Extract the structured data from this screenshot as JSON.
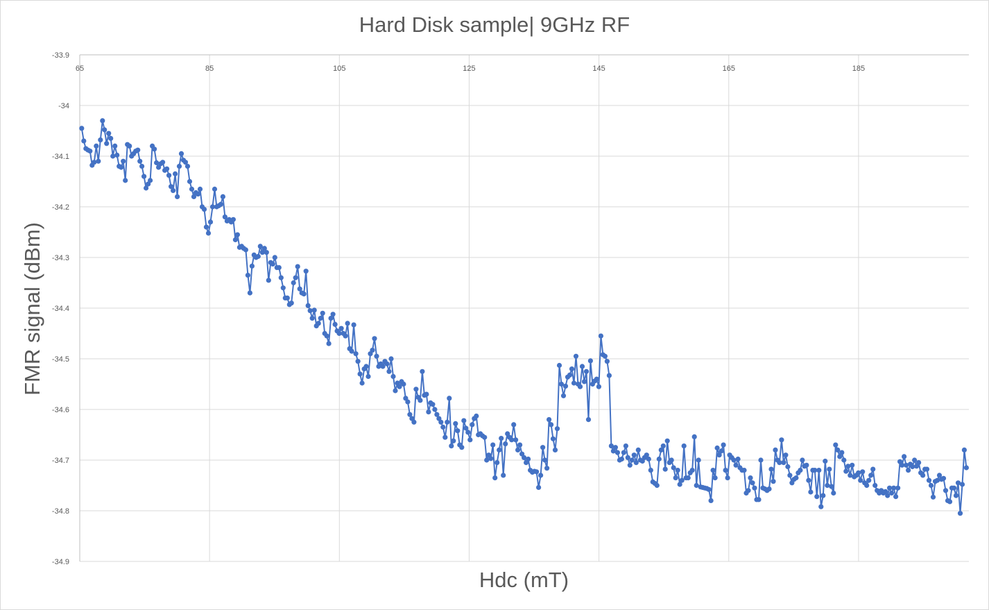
{
  "chart_data": {
    "type": "line",
    "title": "Hard Disk sample| 9GHz RF",
    "xlabel": "Hdc (mT)",
    "ylabel": "FMR signal (dBm)",
    "xlim": [
      65,
      202
    ],
    "ylim": [
      -34.9,
      -33.9
    ],
    "x_ticks": [
      65,
      85,
      105,
      125,
      145,
      165,
      185
    ],
    "x_tick_labels": [
      "65",
      "85",
      "105",
      "125",
      "145",
      "165",
      "185"
    ],
    "y_ticks": [
      -33.9,
      -34,
      -34.1,
      -34.2,
      -34.3,
      -34.4,
      -34.5,
      -34.6,
      -34.7,
      -34.8,
      -34.9
    ],
    "y_tick_labels": [
      "-33.9",
      "-34",
      "-34.1",
      "-34.2",
      "-34.3",
      "-34.4",
      "-34.5",
      "-34.6",
      "-34.7",
      "-34.8",
      "-34.9"
    ],
    "x_axis_position": "top",
    "grid": true,
    "marker": "circle",
    "line_color": "#4472c4",
    "x_start": 65.3,
    "x_step": 0.32,
    "series": [
      {
        "values": [
          -34.045,
          -34.07,
          -34.085,
          -34.088,
          -34.09,
          -34.118,
          -34.112,
          -34.08,
          -34.11,
          -34.068,
          -34.03,
          -34.048,
          -34.075,
          -34.055,
          -34.065,
          -34.1,
          -34.08,
          -34.098,
          -34.12,
          -34.122,
          -34.11,
          -34.148,
          -34.077,
          -34.08,
          -34.1,
          -34.095,
          -34.09,
          -34.088,
          -34.11,
          -34.12,
          -34.14,
          -34.163,
          -34.155,
          -34.148,
          -34.08,
          -34.086,
          -34.113,
          -34.122,
          -34.115,
          -34.112,
          -34.128,
          -34.125,
          -34.138,
          -34.16,
          -34.168,
          -34.135,
          -34.18,
          -34.12,
          -34.095,
          -34.108,
          -34.112,
          -34.12,
          -34.15,
          -34.165,
          -34.18,
          -34.172,
          -34.175,
          -34.165,
          -34.2,
          -34.205,
          -34.24,
          -34.252,
          -34.23,
          -34.2,
          -34.165,
          -34.2,
          -34.198,
          -34.195,
          -34.18,
          -34.22,
          -34.228,
          -34.225,
          -34.23,
          -34.225,
          -34.265,
          -34.255,
          -34.28,
          -34.278,
          -34.282,
          -34.285,
          -34.335,
          -34.37,
          -34.317,
          -34.295,
          -34.3,
          -34.298,
          -34.278,
          -34.29,
          -34.282,
          -34.29,
          -34.345,
          -34.31,
          -34.313,
          -34.3,
          -34.32,
          -34.32,
          -34.34,
          -34.36,
          -34.38,
          -34.38,
          -34.393,
          -34.39,
          -34.35,
          -34.34,
          -34.318,
          -34.362,
          -34.37,
          -34.372,
          -34.327,
          -34.395,
          -34.405,
          -34.42,
          -34.404,
          -34.435,
          -34.43,
          -34.42,
          -34.41,
          -34.45,
          -34.455,
          -34.47,
          -34.42,
          -34.412,
          -34.432,
          -34.445,
          -34.45,
          -34.44,
          -34.45,
          -34.455,
          -34.43,
          -34.48,
          -34.485,
          -34.433,
          -34.49,
          -34.505,
          -34.53,
          -34.548,
          -34.52,
          -34.515,
          -34.535,
          -34.49,
          -34.483,
          -34.46,
          -34.495,
          -34.515,
          -34.51,
          -34.515,
          -34.505,
          -34.51,
          -34.525,
          -34.5,
          -34.535,
          -34.563,
          -34.548,
          -34.555,
          -34.545,
          -34.55,
          -34.578,
          -34.585,
          -34.61,
          -34.618,
          -34.625,
          -34.56,
          -34.576,
          -34.582,
          -34.525,
          -34.572,
          -34.57,
          -34.605,
          -34.587,
          -34.59,
          -34.6,
          -34.61,
          -34.618,
          -34.625,
          -34.635,
          -34.655,
          -34.625,
          -34.578,
          -34.672,
          -34.662,
          -34.628,
          -34.642,
          -34.67,
          -34.675,
          -34.622,
          -34.637,
          -34.645,
          -34.66,
          -34.63,
          -34.618,
          -34.613,
          -34.65,
          -34.648,
          -34.652,
          -34.655,
          -34.7,
          -34.69,
          -34.697,
          -34.67,
          -34.735,
          -34.705,
          -34.68,
          -34.657,
          -34.73,
          -34.668,
          -34.648,
          -34.655,
          -34.66,
          -34.63,
          -34.66,
          -34.68,
          -34.67,
          -34.688,
          -34.695,
          -34.705,
          -34.698,
          -34.72,
          -34.724,
          -34.722,
          -34.723,
          -34.754,
          -34.73,
          -34.675,
          -34.7,
          -34.716,
          -34.62,
          -34.63,
          -34.658,
          -34.68,
          -34.638,
          -34.513,
          -34.55,
          -34.573,
          -34.554,
          -34.536,
          -34.532,
          -34.52,
          -34.548,
          -34.495,
          -34.55,
          -34.555,
          -34.515,
          -34.545,
          -34.525,
          -34.62,
          -34.504,
          -34.55,
          -34.544,
          -34.54,
          -34.555,
          -34.455,
          -34.492,
          -34.495,
          -34.505,
          -34.533,
          -34.672,
          -34.682,
          -34.675,
          -34.685,
          -34.7,
          -34.698,
          -34.685,
          -34.672,
          -34.695,
          -34.71,
          -34.7,
          -34.69,
          -34.705,
          -34.68,
          -34.7,
          -34.702,
          -34.695,
          -34.69,
          -34.698,
          -34.72,
          -34.743,
          -34.746,
          -34.75,
          -34.698,
          -34.68,
          -34.672,
          -34.718,
          -34.662,
          -34.705,
          -34.7,
          -34.715,
          -34.735,
          -34.72,
          -34.748,
          -34.74,
          -34.672,
          -34.735,
          -34.735,
          -34.725,
          -34.72,
          -34.654,
          -34.75,
          -34.7,
          -34.753,
          -34.754,
          -34.755,
          -34.756,
          -34.758,
          -34.78,
          -34.72,
          -34.735,
          -34.676,
          -34.69,
          -34.682,
          -34.67,
          -34.72,
          -34.735,
          -34.69,
          -34.695,
          -34.7,
          -34.71,
          -34.698,
          -34.715,
          -34.72,
          -34.72,
          -34.765,
          -34.76,
          -34.735,
          -34.745,
          -34.755,
          -34.778,
          -34.778,
          -34.7,
          -34.755,
          -34.757,
          -34.76,
          -34.757,
          -34.718,
          -34.742,
          -34.68,
          -34.7,
          -34.705,
          -34.66,
          -34.705,
          -34.69,
          -34.713,
          -34.73,
          -34.745,
          -34.738,
          -34.735,
          -34.725,
          -34.72,
          -34.7,
          -34.712,
          -34.71,
          -34.74,
          -34.763,
          -34.72,
          -34.72,
          -34.772,
          -34.72,
          -34.792,
          -34.77,
          -34.702,
          -34.75,
          -34.718,
          -34.752,
          -34.765,
          -34.67,
          -34.68,
          -34.693,
          -34.685,
          -34.7,
          -34.722,
          -34.712,
          -34.73,
          -34.71,
          -34.733,
          -34.73,
          -34.725,
          -34.74,
          -34.723,
          -34.745,
          -34.75,
          -34.74,
          -34.73,
          -34.718,
          -34.75,
          -34.76,
          -34.765,
          -34.76,
          -34.765,
          -34.762,
          -34.77,
          -34.755,
          -34.765,
          -34.755,
          -34.772,
          -34.755,
          -34.703,
          -34.71,
          -34.693,
          -34.71,
          -34.72,
          -34.708,
          -34.713,
          -34.7,
          -34.712,
          -34.705,
          -34.725,
          -34.73,
          -34.718,
          -34.718,
          -34.74,
          -34.75,
          -34.773,
          -34.742,
          -34.74,
          -34.73,
          -34.738,
          -34.736,
          -34.76,
          -34.78,
          -34.782,
          -34.755,
          -34.755,
          -34.77,
          -34.745,
          -34.805,
          -34.748,
          -34.68,
          -34.715
        ]
      }
    ]
  }
}
